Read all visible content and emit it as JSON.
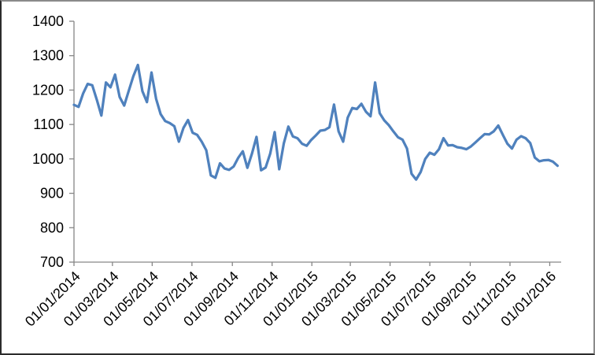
{
  "chart_data": {
    "type": "line",
    "title": "",
    "legend": "none",
    "gridlines": false,
    "plot_area_border": "none",
    "x_axis": {
      "label_format": "dd/mm/yyyy",
      "start_date": "01/01/2014",
      "point_interval": "weekly",
      "tick_labels": [
        "01/01/2014",
        "01/03/2014",
        "01/05/2014",
        "01/07/2014",
        "01/09/2014",
        "01/11/2014",
        "01/01/2015",
        "01/03/2015",
        "01/05/2015",
        "01/07/2015",
        "01/09/2015",
        "01/11/2015",
        "01/01/2016"
      ],
      "tick_label_rotation_deg": 45
    },
    "y_axis": {
      "min": 700,
      "max": 1400,
      "step": 100,
      "tick_labels": [
        "1400",
        "1300",
        "1200",
        "1100",
        "1000",
        "900",
        "800",
        "700"
      ]
    },
    "series": [
      {
        "name": "",
        "color": "#4F81BD",
        "values": [
          1157,
          1151,
          1190,
          1218,
          1214,
          1172,
          1126,
          1222,
          1208,
          1245,
          1180,
          1155,
          1198,
          1240,
          1273,
          1197,
          1165,
          1251,
          1175,
          1130,
          1110,
          1104,
          1095,
          1050,
          1090,
          1113,
          1076,
          1070,
          1050,
          1025,
          952,
          945,
          987,
          972,
          968,
          978,
          1003,
          1022,
          974,
          1015,
          1064,
          967,
          975,
          1015,
          1078,
          970,
          1045,
          1094,
          1065,
          1060,
          1044,
          1038,
          1055,
          1068,
          1082,
          1084,
          1092,
          1158,
          1080,
          1050,
          1120,
          1148,
          1145,
          1160,
          1137,
          1124,
          1222,
          1133,
          1112,
          1098,
          1080,
          1063,
          1056,
          1030,
          957,
          940,
          962,
          1000,
          1018,
          1012,
          1028,
          1060,
          1039,
          1040,
          1034,
          1032,
          1028,
          1036,
          1048,
          1060,
          1072,
          1071,
          1080,
          1097,
          1070,
          1044,
          1030,
          1056,
          1066,
          1060,
          1046,
          1004,
          993,
          996,
          997,
          992,
          980
        ]
      }
    ]
  },
  "colors": {
    "line": "#4F81BD",
    "axis": "#868686",
    "tick_text": "#000000",
    "background": "#FFFFFF"
  }
}
